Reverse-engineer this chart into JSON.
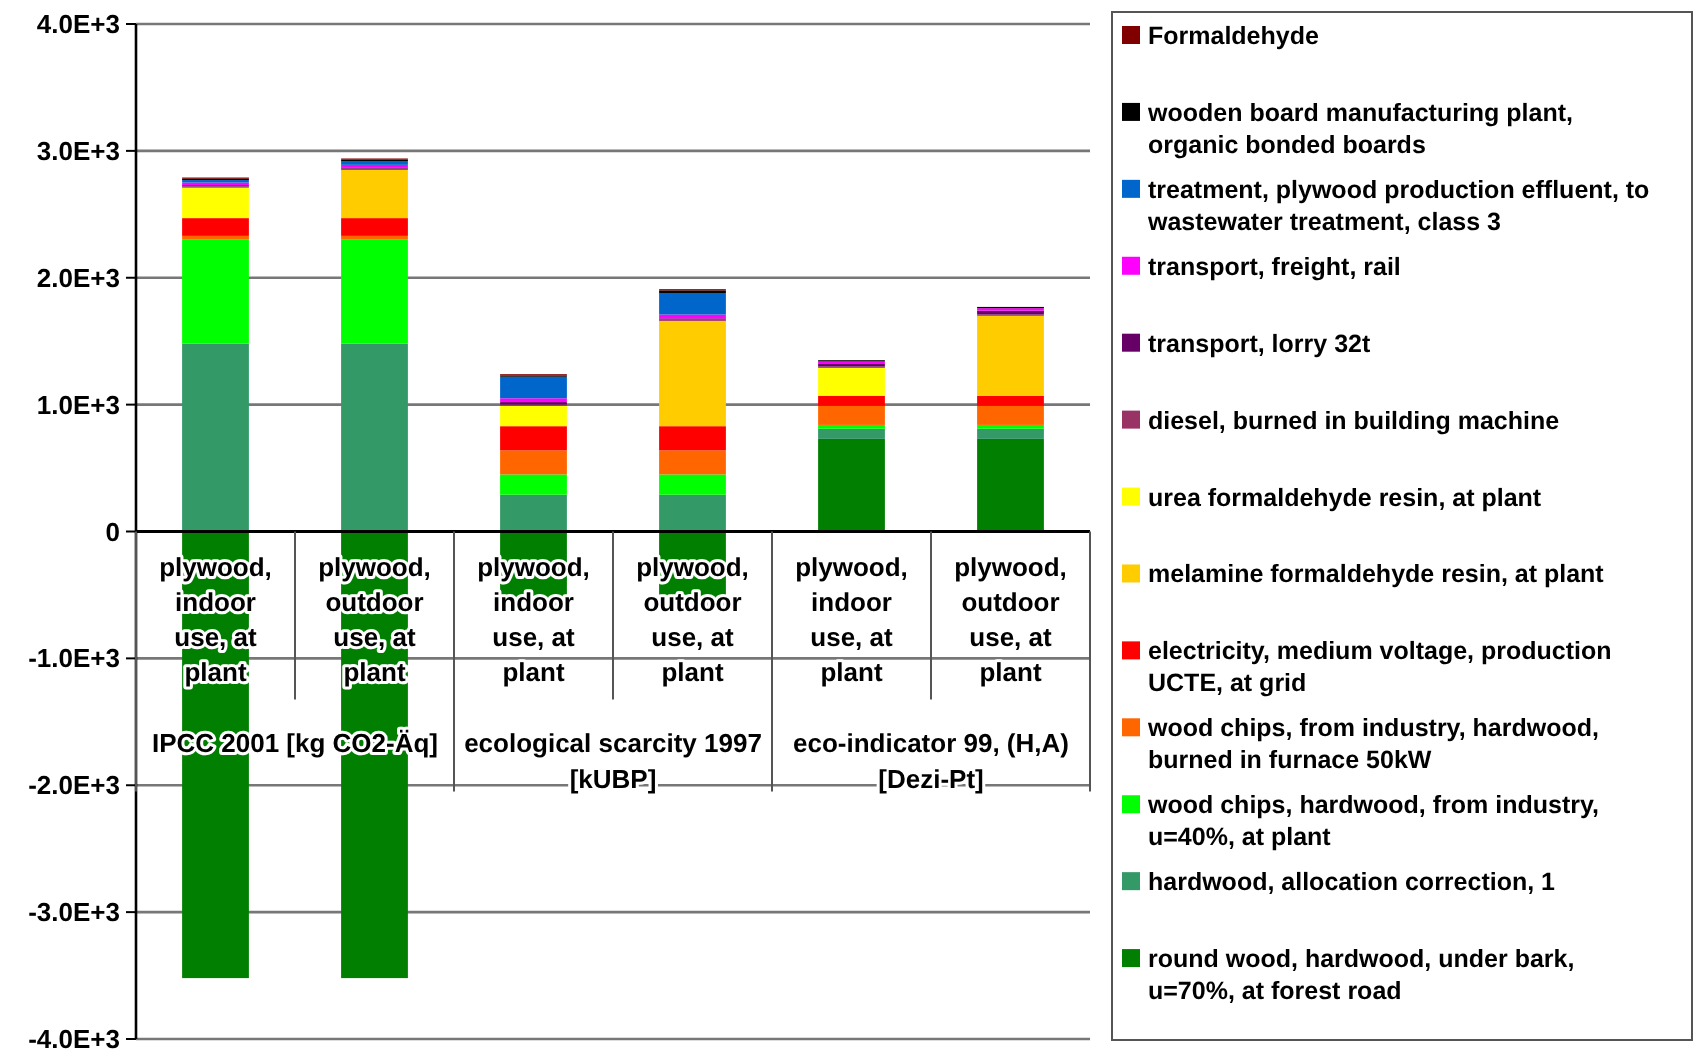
{
  "chart_data": {
    "type": "bar",
    "stacked": true,
    "categories": [
      "plywood, indoor use, at plant",
      "plywood, outdoor use, at plant",
      "plywood, indoor use, at plant",
      "plywood, outdoor use, at plant",
      "plywood, indoor use, at plant",
      "plywood, outdoor use, at plant"
    ],
    "annotations": [
      "IPCC 2001 [kg CO2-Äq]",
      "ecological scarcity 1997 [kUBP]",
      "eco-indicator 99, (H,A) [Dezi-Pt]"
    ],
    "ylim": [
      -4000,
      4000
    ],
    "yticks": [
      {
        "value": -4000,
        "label": "-4.0E+3"
      },
      {
        "value": -3000,
        "label": "-3.0E+3"
      },
      {
        "value": -2000,
        "label": "-2.0E+3"
      },
      {
        "value": -1000,
        "label": "-1.0E+3"
      },
      0,
      {
        "value": 1000,
        "label": "1.0E+3"
      },
      {
        "value": 2000,
        "label": "2.0E+3"
      },
      {
        "value": 3000,
        "label": "3.0E+3"
      },
      {
        "value": 4000,
        "label": "4.0E+3"
      }
    ],
    "grid": "y",
    "legend": "right",
    "series": [
      {
        "name": "round wood, hardwood, under bark, u=70%, at forest road",
        "color": "#007f00",
        "values": [
          -3520,
          -3520,
          -600,
          -600,
          730,
          730
        ]
      },
      {
        "name": "hardwood, allocation correction, 1",
        "color": "#339966",
        "values": [
          1480,
          1480,
          290,
          290,
          80,
          80
        ]
      },
      {
        "name": "wood chips, hardwood, from industry, u=40%, at plant",
        "color": "#00ff00",
        "values": [
          820,
          820,
          160,
          160,
          30,
          30
        ]
      },
      {
        "name": "wood chips, from industry, hardwood, burned in furnace 50kW",
        "color": "#ff6600",
        "values": [
          30,
          30,
          190,
          190,
          150,
          150
        ]
      },
      {
        "name": "electricity, medium voltage, production UCTE, at grid",
        "color": "#ff0000",
        "values": [
          140,
          140,
          190,
          190,
          80,
          80
        ]
      },
      {
        "name": "melamine formaldehyde resin, at plant",
        "color": "#ffcc00",
        "values": [
          0,
          380,
          0,
          830,
          0,
          630
        ]
      },
      {
        "name": "urea formaldehyde resin, at plant",
        "color": "#ffff00",
        "values": [
          240,
          0,
          160,
          0,
          220,
          0
        ]
      },
      {
        "name": "diesel, burned in building machine",
        "color": "#993366",
        "values": [
          10,
          10,
          10,
          10,
          10,
          10
        ]
      },
      {
        "name": "transport, lorry 32t",
        "color": "#660066",
        "values": [
          10,
          10,
          20,
          10,
          20,
          30
        ]
      },
      {
        "name": "transport, freight, rail",
        "color": "#ff00ff",
        "values": [
          20,
          20,
          30,
          30,
          20,
          20
        ]
      },
      {
        "name": "treatment, plywood production effluent, to wastewater treatment, class 3",
        "color": "#0066cc",
        "values": [
          20,
          30,
          170,
          170,
          0,
          0
        ]
      },
      {
        "name": "wooden board manufacturing plant, organic bonded boards",
        "color": "#000000",
        "values": [
          10,
          10,
          10,
          20,
          10,
          10
        ]
      },
      {
        "name": "Formaldehyde",
        "color": "#800000",
        "values": [
          10,
          10,
          10,
          10,
          0,
          0
        ]
      }
    ]
  }
}
